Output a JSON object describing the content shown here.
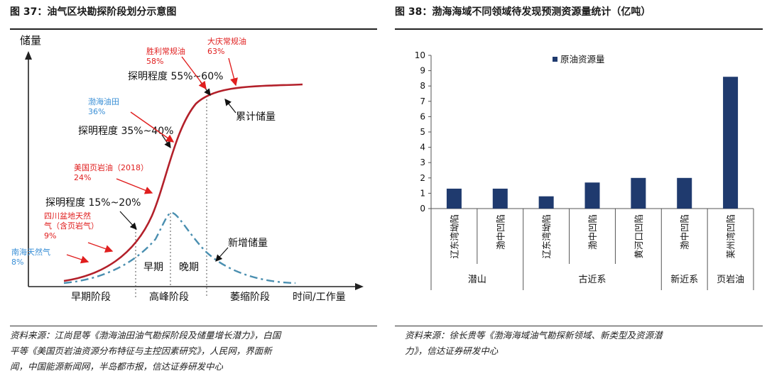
{
  "left": {
    "title": "图 37：油气区块勘探阶段划分示意图",
    "y_axis_label": "储量",
    "x_axis_label": "时间/工作量",
    "stages": [
      "早期阶段",
      "高峰阶段",
      "萎缩阶段"
    ],
    "periods": [
      "早期",
      "晚期"
    ],
    "curves": {
      "cumulative": "累计储量",
      "new": "新增储量"
    },
    "colors": {
      "cumulative": "#b3202a",
      "new": "#4a8fb0",
      "red_label": "#e01e1e",
      "blue_label": "#3a8fd6"
    },
    "exploration": [
      {
        "label": "探明程度 15%~20%"
      },
      {
        "label": "探明程度 35%~40%"
      },
      {
        "label": "探明程度 55%~60%"
      }
    ],
    "fields": [
      {
        "name": "南海天然气",
        "pct": "8%",
        "color": "blue"
      },
      {
        "name": "四川盆地天然气（含页岩气）",
        "name_line1": "四川盆地天然",
        "name_line2": "气（含页岩气）",
        "pct": "9%",
        "color": "red"
      },
      {
        "name": "美国页岩油（2018）",
        "pct": "24%",
        "color": "red"
      },
      {
        "name": "渤海油田",
        "pct": "36%",
        "color": "blue"
      },
      {
        "name": "胜利常规油",
        "pct": "58%",
        "color": "red"
      },
      {
        "name": "大庆常规油",
        "pct": "63%",
        "color": "red"
      }
    ],
    "source_lines": [
      "资料来源：江尚昆等《渤海油田油气勘探阶段及储量增长潜力》，白国",
      "平等《美国页岩油资源分布特征与主控因素研究》，人民网，界面新",
      "闻，中国能源新闻网，半岛都市报，信达证券研发中心"
    ]
  },
  "right": {
    "title": "图 38：渤海海域不同领域待发现预测资源量统计（亿吨）",
    "source_lines": [
      "资料来源：徐长贵等《渤海海域油气勘探新领域、新类型及资源潜",
      "力》，信达证券研发中心"
    ]
  },
  "chart_data": {
    "type": "bar",
    "title": "",
    "xlabel": "",
    "ylabel": "",
    "ylim": [
      0,
      10
    ],
    "yticks": [
      0,
      1,
      2,
      3,
      4,
      5,
      6,
      7,
      8,
      9,
      10
    ],
    "categories": [
      "辽东湾坳陷",
      "渤中凹陷",
      "辽东湾坳陷",
      "渤中凹陷",
      "黄河口凹陷",
      "渤中凹陷",
      "莱州湾凹陷"
    ],
    "groups": [
      {
        "name": "潜山",
        "count": 2
      },
      {
        "name": "古近系",
        "count": 3
      },
      {
        "name": "新近系",
        "count": 1
      },
      {
        "name": "页岩油",
        "count": 1
      }
    ],
    "series": [
      {
        "name": "原油资源量",
        "values": [
          1.3,
          1.3,
          0.8,
          1.7,
          2.0,
          2.0,
          8.6
        ],
        "color": "#1f3a6e"
      }
    ],
    "legend": "top-left",
    "grid": false
  }
}
